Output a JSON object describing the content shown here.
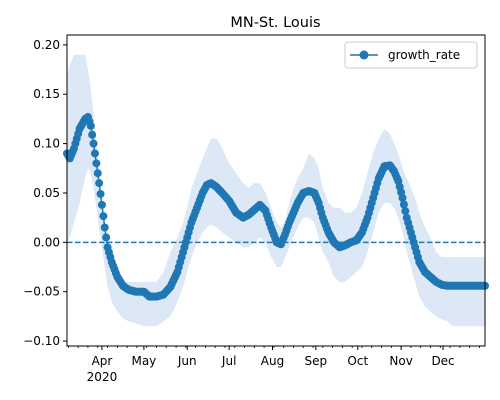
{
  "chart_data": {
    "type": "line",
    "title": "MN-St. Louis",
    "xlabel": "",
    "ylabel": "",
    "x_range": [
      "2020-03-07",
      "2020-12-31"
    ],
    "ylim": [
      -0.105,
      0.21
    ],
    "grid": false,
    "legend": {
      "placement": "top-right",
      "entries": [
        "growth_rate"
      ]
    },
    "x_ticks": [
      {
        "date": "2020-04-01",
        "label": "Apr",
        "sublabel": "2020"
      },
      {
        "date": "2020-05-01",
        "label": "May"
      },
      {
        "date": "2020-06-01",
        "label": "Jun"
      },
      {
        "date": "2020-07-01",
        "label": "Jul"
      },
      {
        "date": "2020-08-01",
        "label": "Aug"
      },
      {
        "date": "2020-09-01",
        "label": "Sep"
      },
      {
        "date": "2020-10-01",
        "label": "Oct"
      },
      {
        "date": "2020-11-01",
        "label": "Nov"
      },
      {
        "date": "2020-12-01",
        "label": "Dec"
      }
    ],
    "y_ticks": [
      {
        "value": 0.2,
        "label": "0.20"
      },
      {
        "value": 0.15,
        "label": "0.15"
      },
      {
        "value": 0.1,
        "label": "0.10"
      },
      {
        "value": 0.05,
        "label": "0.05"
      },
      {
        "value": 0.0,
        "label": "0.00"
      },
      {
        "value": -0.05,
        "label": "−0.05"
      },
      {
        "value": -0.1,
        "label": "−0.10"
      }
    ],
    "reference_line": {
      "y": 0.0,
      "style": "dashed"
    },
    "colors": {
      "series": "#1f77b4",
      "band": "#dce8f5"
    },
    "series": [
      {
        "name": "growth_rate",
        "marker": "circle",
        "x": [
          "2020-03-07",
          "2020-03-09",
          "2020-03-12",
          "2020-03-16",
          "2020-03-20",
          "2020-03-22",
          "2020-03-24",
          "2020-03-26",
          "2020-03-28",
          "2020-03-30",
          "2020-04-01",
          "2020-04-03",
          "2020-04-05",
          "2020-04-08",
          "2020-04-12",
          "2020-04-16",
          "2020-04-20",
          "2020-04-25",
          "2020-05-01",
          "2020-05-05",
          "2020-05-10",
          "2020-05-15",
          "2020-05-20",
          "2020-05-25",
          "2020-05-29",
          "2020-06-01",
          "2020-06-04",
          "2020-06-08",
          "2020-06-12",
          "2020-06-15",
          "2020-06-18",
          "2020-06-22",
          "2020-06-26",
          "2020-07-01",
          "2020-07-06",
          "2020-07-11",
          "2020-07-15",
          "2020-07-19",
          "2020-07-23",
          "2020-07-27",
          "2020-07-31",
          "2020-08-04",
          "2020-08-07",
          "2020-08-10",
          "2020-08-13",
          "2020-08-16",
          "2020-08-19",
          "2020-08-23",
          "2020-08-27",
          "2020-08-31",
          "2020-09-03",
          "2020-09-06",
          "2020-09-10",
          "2020-09-14",
          "2020-09-18",
          "2020-09-22",
          "2020-09-26",
          "2020-09-30",
          "2020-10-04",
          "2020-10-08",
          "2020-10-12",
          "2020-10-16",
          "2020-10-20",
          "2020-10-24",
          "2020-10-27",
          "2020-10-30",
          "2020-11-02",
          "2020-11-05",
          "2020-11-08",
          "2020-11-11",
          "2020-11-14",
          "2020-11-18",
          "2020-11-22",
          "2020-11-26",
          "2020-11-30",
          "2020-12-04",
          "2020-12-08",
          "2020-12-12",
          "2020-12-16",
          "2020-12-20",
          "2020-12-24",
          "2020-12-28",
          "2020-12-31"
        ],
        "values": [
          0.09,
          0.085,
          0.095,
          0.115,
          0.125,
          0.127,
          0.118,
          0.1,
          0.08,
          0.06,
          0.038,
          0.015,
          -0.005,
          -0.02,
          -0.035,
          -0.044,
          -0.048,
          -0.05,
          -0.05,
          -0.055,
          -0.055,
          -0.053,
          -0.045,
          -0.03,
          -0.01,
          0.005,
          0.02,
          0.035,
          0.05,
          0.058,
          0.06,
          0.056,
          0.05,
          0.042,
          0.03,
          0.025,
          0.028,
          0.033,
          0.038,
          0.032,
          0.015,
          0.0,
          -0.002,
          0.008,
          0.02,
          0.03,
          0.04,
          0.05,
          0.052,
          0.05,
          0.04,
          0.025,
          0.01,
          0.0,
          -0.005,
          -0.003,
          0.0,
          0.002,
          0.01,
          0.025,
          0.045,
          0.065,
          0.077,
          0.078,
          0.072,
          0.062,
          0.045,
          0.025,
          0.01,
          -0.005,
          -0.02,
          -0.03,
          -0.035,
          -0.04,
          -0.043,
          -0.044,
          -0.044,
          -0.044,
          -0.044,
          -0.044,
          -0.044,
          -0.044,
          -0.044
        ],
        "band_upper": [
          0.17,
          0.18,
          0.19,
          0.19,
          0.19,
          0.175,
          0.155,
          0.13,
          0.1,
          0.07,
          0.04,
          0.01,
          -0.015,
          -0.025,
          -0.035,
          -0.04,
          -0.04,
          -0.04,
          -0.04,
          -0.04,
          -0.04,
          -0.03,
          -0.01,
          0.005,
          0.02,
          0.035,
          0.055,
          0.07,
          0.085,
          0.095,
          0.105,
          0.105,
          0.095,
          0.08,
          0.07,
          0.06,
          0.055,
          0.06,
          0.06,
          0.05,
          0.035,
          0.02,
          0.015,
          0.022,
          0.04,
          0.055,
          0.065,
          0.075,
          0.09,
          0.085,
          0.075,
          0.055,
          0.04,
          0.035,
          0.035,
          0.03,
          0.03,
          0.035,
          0.05,
          0.07,
          0.09,
          0.105,
          0.115,
          0.11,
          0.1,
          0.09,
          0.075,
          0.065,
          0.055,
          0.045,
          0.03,
          0.015,
          0.005,
          -0.01,
          -0.015,
          -0.015,
          -0.015,
          -0.015,
          -0.015,
          -0.015,
          -0.015,
          -0.015,
          -0.015
        ],
        "band_lower": [
          0.0,
          0.005,
          0.02,
          0.04,
          0.065,
          0.075,
          0.07,
          0.055,
          0.035,
          0.015,
          -0.005,
          -0.025,
          -0.045,
          -0.06,
          -0.07,
          -0.077,
          -0.08,
          -0.082,
          -0.085,
          -0.085,
          -0.085,
          -0.08,
          -0.075,
          -0.06,
          -0.045,
          -0.03,
          -0.015,
          0.0,
          0.01,
          0.015,
          0.018,
          0.015,
          0.01,
          0.005,
          0.0,
          -0.005,
          -0.005,
          0.0,
          0.005,
          0.0,
          -0.015,
          -0.025,
          -0.025,
          -0.015,
          -0.005,
          0.005,
          0.015,
          0.025,
          0.025,
          0.02,
          0.005,
          -0.01,
          -0.02,
          -0.035,
          -0.04,
          -0.04,
          -0.035,
          -0.03,
          -0.025,
          -0.01,
          0.01,
          0.03,
          0.04,
          0.04,
          0.035,
          0.025,
          0.01,
          -0.01,
          -0.025,
          -0.04,
          -0.055,
          -0.065,
          -0.07,
          -0.075,
          -0.078,
          -0.08,
          -0.085,
          -0.085,
          -0.085,
          -0.085,
          -0.085,
          -0.085,
          -0.085
        ]
      }
    ]
  }
}
